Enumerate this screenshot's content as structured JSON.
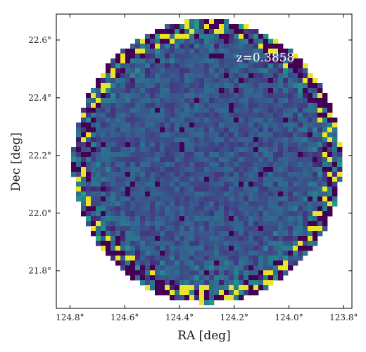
{
  "chart_data": {
    "type": "heatmap",
    "xlabel": "RA [deg]",
    "ylabel": "Dec [deg]",
    "xlim": [
      124.85,
      123.77
    ],
    "ylim": [
      21.67,
      22.69
    ],
    "x_ticks": [
      {
        "value": 124.8,
        "label": "124.8°"
      },
      {
        "value": 124.6,
        "label": "124.6°"
      },
      {
        "value": 124.4,
        "label": "124.4°"
      },
      {
        "value": 124.2,
        "label": "124.2°"
      },
      {
        "value": 124.0,
        "label": "124.0°"
      },
      {
        "value": 123.8,
        "label": "123.8°"
      }
    ],
    "y_ticks": [
      {
        "value": 21.8,
        "label": "21.8°"
      },
      {
        "value": 22.0,
        "label": "22.0°"
      },
      {
        "value": 22.2,
        "label": "22.2°"
      },
      {
        "value": 22.4,
        "label": "22.4°"
      },
      {
        "value": 22.6,
        "label": "22.6°"
      }
    ],
    "annotation": {
      "text": "z=0.3858",
      "ra": 124.1,
      "dec": 22.54
    },
    "colormap": "viridis",
    "footprint": {
      "center_ra": 124.3,
      "center_dec": 22.18,
      "radius_deg": 0.49
    },
    "grid": false,
    "legend": "none"
  }
}
